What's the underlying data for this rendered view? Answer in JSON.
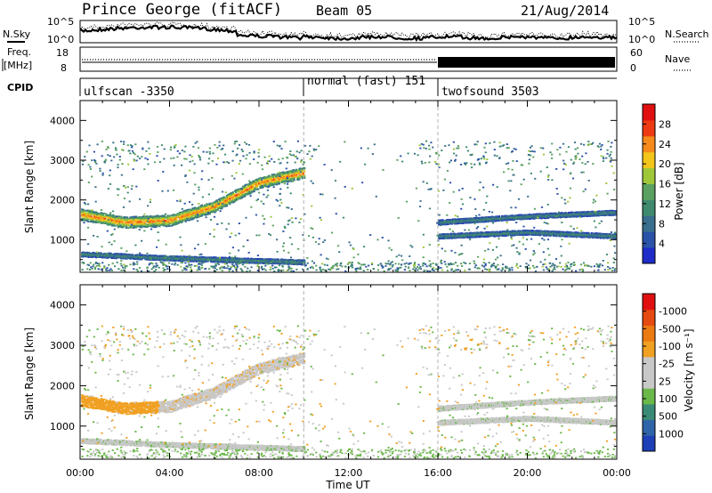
{
  "header": {
    "station": "Prince George (fitACF)",
    "beam": "Beam 05",
    "date": "21/Aug/2014"
  },
  "strips": {
    "nsky_label": "N.Sky",
    "nsky_ticks": [
      "10^5",
      "10^0"
    ],
    "nsearch_label": "N.Search",
    "nsearch_ticks": [
      "10^5",
      "10^0"
    ],
    "freq_label_1": "Freq.",
    "freq_label_2": "[MHz]",
    "freq_ticks": [
      "18",
      "8"
    ],
    "nave_label": "Nave",
    "nave_ticks": [
      "60",
      "0"
    ],
    "cpid_label": "CPID"
  },
  "cpid_segments": [
    {
      "label": "ulfscan -3350",
      "start_hour": 0,
      "end_hour": 10
    },
    {
      "label": "normal (fast) 151",
      "start_hour": 10,
      "end_hour": 16
    },
    {
      "label": "twofsound 3503",
      "start_hour": 16,
      "end_hour": 24
    }
  ],
  "colors": {
    "power_scale": [
      "#1f2cc8",
      "#2a52a8",
      "#3a6e8e",
      "#3f8a6e",
      "#5aa060",
      "#9ec83a",
      "#f2c61a",
      "#f58a1a",
      "#ee3a12",
      "#e01010"
    ],
    "velocity_scale": [
      "#1d3fb8",
      "#2f64a8",
      "#3a8a76",
      "#6bb84a",
      "#c8c8c8",
      "#c8c8c8",
      "#f0a022",
      "#ec7a12",
      "#e54a10",
      "#e01010"
    ],
    "scatter_gray": "#c8c8c8"
  },
  "chart_data": [
    {
      "type": "heatmap",
      "title": "Power",
      "xlabel": "Time UT",
      "ylabel": "Slant Range [km]",
      "xlim": [
        0,
        24
      ],
      "ylim": [
        180,
        4500
      ],
      "x_ticks": [
        "00:00",
        "04:00",
        "08:00",
        "12:00",
        "16:00",
        "20:00",
        "00:00"
      ],
      "y_ticks": [
        "1000",
        "2000",
        "3000",
        "4000"
      ],
      "colorbar_label": "Power [dB]",
      "colorbar_ticks": [
        "4",
        "8",
        "12",
        "16",
        "20",
        "24",
        "28"
      ],
      "colorbar_range": [
        0,
        30
      ],
      "echo_bands": [
        {
          "name": "band-main",
          "t": [
            0,
            2,
            4,
            6,
            8,
            10
          ],
          "range_km": [
            1650,
            1450,
            1500,
            1850,
            2450,
            2700
          ],
          "power_db": 22
        },
        {
          "name": "band-lower",
          "t": [
            0,
            4,
            10
          ],
          "range_km": [
            650,
            550,
            450
          ],
          "power_db": 10
        },
        {
          "name": "band-late-1",
          "t": [
            16,
            20,
            24
          ],
          "range_km": [
            1100,
            1200,
            1100
          ],
          "power_db": 10
        },
        {
          "name": "band-late-2",
          "t": [
            16,
            20,
            24
          ],
          "range_km": [
            1450,
            1600,
            1700
          ],
          "power_db": 10
        }
      ]
    },
    {
      "type": "heatmap",
      "title": "Velocity",
      "xlabel": "Time UT",
      "ylabel": "Slant Range [km]",
      "xlim": [
        0,
        24
      ],
      "ylim": [
        180,
        4500
      ],
      "x_ticks": [
        "00:00",
        "04:00",
        "08:00",
        "12:00",
        "16:00",
        "20:00",
        "00:00"
      ],
      "y_ticks": [
        "1000",
        "2000",
        "3000",
        "4000"
      ],
      "colorbar_label": "Velocity [m s⁻¹]",
      "colorbar_ticks": [
        "1000",
        "500",
        "100",
        "25",
        "-25",
        "-100",
        "-500",
        "-1000"
      ],
      "colorbar_range": [
        -1000,
        1000
      ]
    }
  ]
}
